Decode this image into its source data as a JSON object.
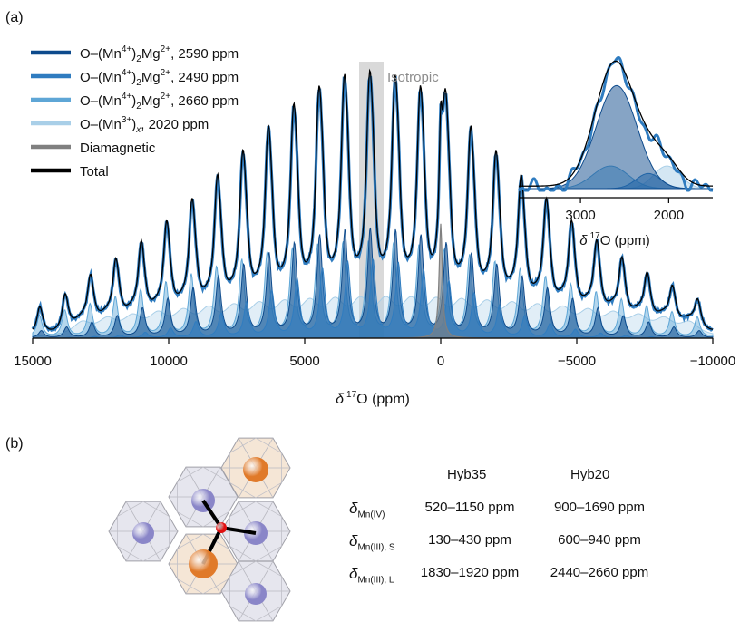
{
  "panel_a_label": "(a)",
  "panel_b_label": "(b)",
  "isotropic_label": "Isotropic",
  "legend": [
    {
      "label_parts": [
        "O–(Mn",
        "4+",
        ")",
        "2",
        "Mg",
        "2+",
        ", 2590 ppm"
      ],
      "color": "#0d4a8c"
    },
    {
      "label_parts": [
        "O–(Mn",
        "4+",
        ")",
        "2",
        "Mg",
        "2+",
        ", 2490 ppm"
      ],
      "color": "#2f7cc0"
    },
    {
      "label_parts": [
        "O–(Mn",
        "4+",
        ")",
        "2",
        "Mg",
        "2+",
        ", 2660 ppm"
      ],
      "color": "#5ea6d6"
    },
    {
      "label_parts": [
        "O–(Mn",
        "3+",
        ")",
        "x",
        ", 2020 ppm"
      ],
      "color": "#a9cfe8"
    },
    {
      "label_parts": [
        "Diamagnetic"
      ],
      "color": "#808080"
    },
    {
      "label_parts": [
        "Total"
      ],
      "color": "#000000"
    }
  ],
  "colors": {
    "experimental": "#2f7cc0",
    "total": "#000000",
    "diamagnetic": "#808080",
    "isotropic_band": "#d9d9d9",
    "mn4_site": "#8a86c8",
    "mn3_site": "#e07a2a",
    "oxygen": "#e01010",
    "mn4_hex": "#e6e6ee",
    "mn3_hex": "#f5e6d6"
  },
  "chart_data": [
    {
      "type": "line",
      "panel": "main",
      "xlabel_parts": [
        "δ",
        "17",
        "O (ppm)"
      ],
      "xlim": [
        15000,
        -10000
      ],
      "x_ticks": [
        15000,
        10000,
        5000,
        0,
        -5000,
        -10000
      ],
      "x_tick_labels": [
        "15000",
        "10000",
        "5000",
        "0",
        "−5000",
        "−10000"
      ],
      "isotropic_band_ppm": [
        3000,
        2100
      ],
      "spinning_sideband_spacing_ppm": 930,
      "series": [
        {
          "name": "O–(Mn4+)2Mg2+, 2590 ppm",
          "center_ppm": 2590,
          "envelope_center_ppm": 2590,
          "envelope_width_ppm": 5200,
          "relative_amplitude": 0.25,
          "fill": true
        },
        {
          "name": "O–(Mn4+)2Mg2+, 2490 ppm",
          "center_ppm": 2490,
          "envelope_center_ppm": 2600,
          "envelope_width_ppm": 3600,
          "relative_amplitude": 0.18,
          "fill": true
        },
        {
          "name": "O–(Mn4+)2Mg2+, 2660 ppm",
          "center_ppm": 2660,
          "envelope_center_ppm": 2800,
          "envelope_width_ppm": 7000,
          "relative_amplitude": 0.22,
          "fill": true
        },
        {
          "name": "O–(Mn3+)x, 2020 ppm",
          "center_ppm": 2020,
          "envelope_center_ppm": 2020,
          "envelope_width_ppm": 9000,
          "relative_amplitude": 0.2,
          "fill": true
        },
        {
          "name": "Diamagnetic",
          "center_ppm": 0,
          "relative_amplitude": 0.27
        },
        {
          "name": "Total"
        }
      ]
    },
    {
      "type": "line",
      "panel": "inset",
      "xlabel_parts": [
        "δ",
        "17",
        "O (ppm)"
      ],
      "xlim": [
        3700,
        1500
      ],
      "x_ticks": [
        3000,
        2000
      ],
      "x_tick_labels": [
        "3000",
        "2000"
      ],
      "series": [
        {
          "name": "O–(Mn4+)2Mg2+, 2590 ppm",
          "center_ppm": 2590,
          "relative_amplitude": 0.82
        },
        {
          "name": "O–(Mn4+)2Mg2+, 2490 ppm",
          "center_ppm": 2490,
          "relative_amplitude": 0.12
        },
        {
          "name": "O–(Mn4+)2Mg2+, 2660 ppm",
          "center_ppm": 2660,
          "relative_amplitude": 0.18
        },
        {
          "name": "O–(Mn3+)x, 2020 ppm",
          "center_ppm": 2020,
          "relative_amplitude": 0.18
        },
        {
          "name": "Total"
        }
      ]
    }
  ],
  "table": {
    "columns": [
      "Hyb35",
      "Hyb20"
    ],
    "rows": [
      {
        "symbol": "δ",
        "subscript": "Mn(IV)",
        "hyb35": "520–1150 ppm",
        "hyb20": "900–1690 ppm"
      },
      {
        "symbol": "δ",
        "subscript": "Mn(III), S",
        "hyb35": "130–430 ppm",
        "hyb20": "600–940 ppm"
      },
      {
        "symbol": "δ",
        "subscript": "Mn(III), L",
        "hyb35": "1830–1920 ppm",
        "hyb20": "2440–2660 ppm"
      }
    ]
  }
}
